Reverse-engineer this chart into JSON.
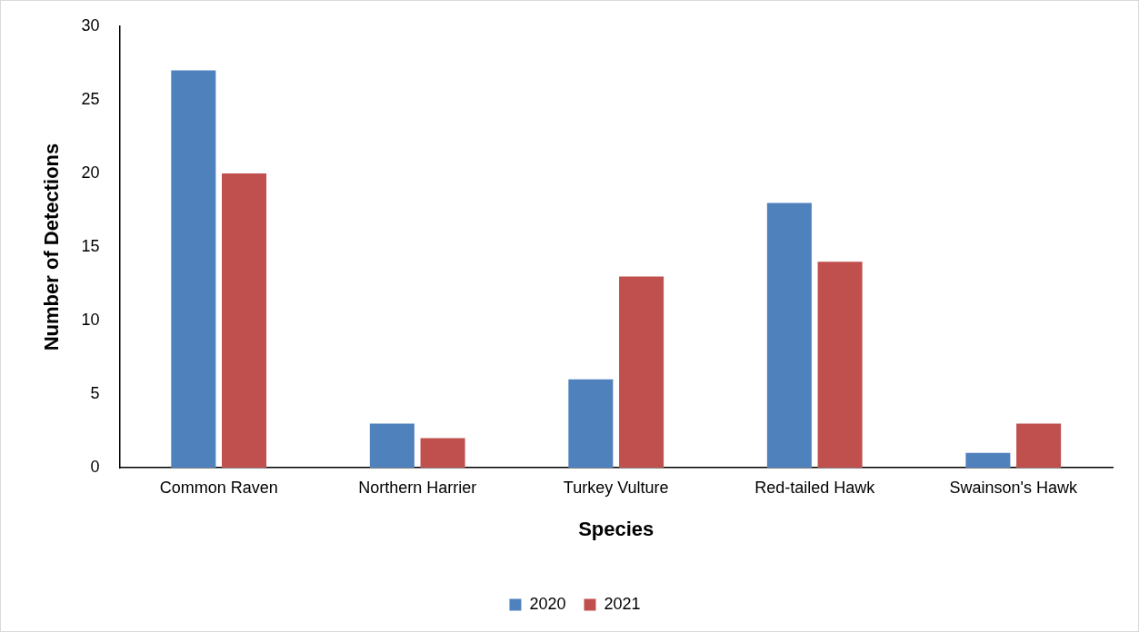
{
  "chart_data": {
    "type": "bar",
    "xlabel": "Species",
    "ylabel": "Number of Detections",
    "categories": [
      "Common Raven",
      "Northern Harrier",
      "Turkey Vulture",
      "Red-tailed Hawk",
      "Swainson's Hawk"
    ],
    "series": [
      {
        "name": "2020",
        "color": "#4f81bd",
        "values": [
          27,
          3,
          6,
          18,
          1
        ]
      },
      {
        "name": "2021",
        "color": "#c0504d",
        "values": [
          20,
          2,
          13,
          14,
          3
        ]
      }
    ],
    "ylim": [
      0,
      30
    ],
    "yticks": [
      0,
      5,
      10,
      15,
      20,
      25,
      30
    ],
    "grid": false,
    "legend": "bottom"
  }
}
